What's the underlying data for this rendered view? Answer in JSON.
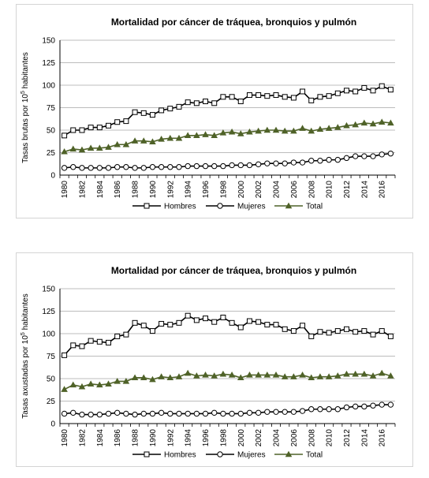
{
  "chart_data": [
    {
      "type": "line",
      "title": "Mortalidad por cáncer de tráquea, bronquios y pulmón",
      "ylabel": {
        "pre": "Tasas brutas por 10",
        "sup": "5",
        "post": " habitantes"
      },
      "xlabel": "",
      "ylim": [
        0,
        150
      ],
      "yticks": [
        0,
        25,
        50,
        75,
        100,
        125,
        150
      ],
      "x": [
        1980,
        1981,
        1982,
        1983,
        1984,
        1985,
        1986,
        1987,
        1988,
        1989,
        1990,
        1991,
        1992,
        1993,
        1994,
        1995,
        1996,
        1997,
        1998,
        1999,
        2000,
        2001,
        2002,
        2003,
        2004,
        2005,
        2006,
        2007,
        2008,
        2009,
        2010,
        2011,
        2012,
        2013,
        2014,
        2015,
        2016,
        2017
      ],
      "xticks": [
        1980,
        1982,
        1984,
        1986,
        1988,
        1990,
        1992,
        1994,
        1996,
        1998,
        2000,
        2002,
        2004,
        2006,
        2008,
        2010,
        2012,
        2014,
        2016
      ],
      "grid": "horizontal",
      "legend": "bottom",
      "series": [
        {
          "name": "Hombres",
          "marker": "square",
          "color": "#000000",
          "values": [
            44,
            50,
            50,
            53,
            53,
            55,
            59,
            60,
            70,
            69,
            67,
            72,
            74,
            76,
            81,
            80,
            82,
            80,
            87,
            87,
            82,
            89,
            89,
            88,
            89,
            87,
            86,
            93,
            83,
            87,
            88,
            91,
            94,
            93,
            97,
            94,
            99,
            95
          ]
        },
        {
          "name": "Mujeres",
          "marker": "circle",
          "color": "#000000",
          "values": [
            8,
            9,
            8,
            8,
            8,
            8,
            9,
            9,
            8,
            8,
            9,
            9,
            9,
            9,
            10,
            10,
            10,
            10,
            10,
            11,
            11,
            11,
            12,
            13,
            13,
            13,
            14,
            14,
            16,
            16,
            17,
            17,
            19,
            21,
            21,
            21,
            23,
            24
          ]
        },
        {
          "name": "Total",
          "marker": "triangle",
          "color": "#4f6228",
          "values": [
            26,
            29,
            28,
            30,
            30,
            31,
            34,
            34,
            38,
            38,
            37,
            40,
            41,
            41,
            44,
            44,
            45,
            44,
            47,
            48,
            46,
            48,
            49,
            50,
            50,
            49,
            49,
            52,
            49,
            51,
            52,
            53,
            55,
            56,
            58,
            57,
            59,
            58
          ]
        }
      ]
    },
    {
      "type": "line",
      "title": "Mortalidad por cáncer de tráquea, bronquios y pulmón",
      "ylabel": {
        "pre": "Tasas axustadas por 10",
        "sup": "5",
        "post": " habitantes"
      },
      "xlabel": "",
      "ylim": [
        0,
        150
      ],
      "yticks": [
        0,
        25,
        50,
        75,
        100,
        125,
        150
      ],
      "x": [
        1980,
        1981,
        1982,
        1983,
        1984,
        1985,
        1986,
        1987,
        1988,
        1989,
        1990,
        1991,
        1992,
        1993,
        1994,
        1995,
        1996,
        1997,
        1998,
        1999,
        2000,
        2001,
        2002,
        2003,
        2004,
        2005,
        2006,
        2007,
        2008,
        2009,
        2010,
        2011,
        2012,
        2013,
        2014,
        2015,
        2016,
        2017
      ],
      "xticks": [
        1980,
        1982,
        1984,
        1986,
        1988,
        1990,
        1992,
        1994,
        1996,
        1998,
        2000,
        2002,
        2004,
        2006,
        2008,
        2010,
        2012,
        2014,
        2016
      ],
      "grid": "horizontal",
      "legend": "bottom",
      "series": [
        {
          "name": "Hombres",
          "marker": "square",
          "color": "#000000",
          "values": [
            76,
            87,
            86,
            92,
            91,
            90,
            97,
            99,
            112,
            109,
            103,
            111,
            110,
            112,
            120,
            115,
            117,
            113,
            118,
            112,
            107,
            114,
            113,
            110,
            110,
            105,
            103,
            109,
            97,
            102,
            101,
            103,
            105,
            102,
            103,
            99,
            103,
            97
          ]
        },
        {
          "name": "Mujeres",
          "marker": "circle",
          "color": "#000000",
          "values": [
            11,
            12,
            10,
            10,
            10,
            11,
            12,
            11,
            10,
            11,
            11,
            12,
            11,
            11,
            11,
            11,
            11,
            12,
            11,
            11,
            11,
            12,
            12,
            13,
            13,
            13,
            13,
            14,
            16,
            16,
            16,
            16,
            18,
            19,
            19,
            20,
            21,
            21
          ]
        },
        {
          "name": "Total",
          "marker": "triangle",
          "color": "#4f6228",
          "values": [
            38,
            43,
            41,
            44,
            43,
            44,
            47,
            47,
            51,
            51,
            49,
            52,
            51,
            52,
            56,
            53,
            54,
            53,
            55,
            54,
            51,
            54,
            54,
            54,
            54,
            52,
            52,
            54,
            51,
            52,
            52,
            53,
            55,
            55,
            55,
            53,
            56,
            53
          ]
        }
      ]
    }
  ]
}
